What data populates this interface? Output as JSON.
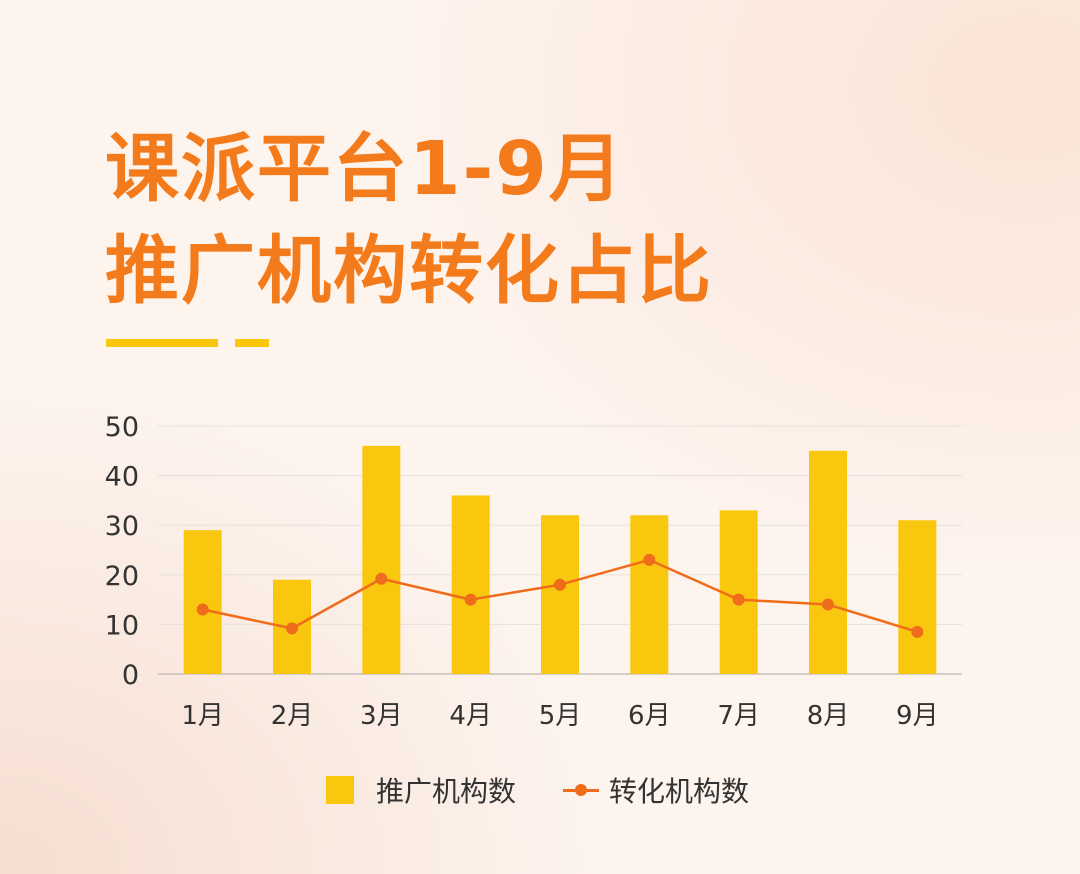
{
  "title": {
    "line1": "课派平台1-9月",
    "line2": "推广机构转化占比"
  },
  "colors": {
    "title": "#f47b1b",
    "bar": "#f9c80e",
    "line": "#ef6c1a"
  },
  "chart_data": {
    "type": "bar",
    "categories": [
      "1月",
      "2月",
      "3月",
      "4月",
      "5月",
      "6月",
      "7月",
      "8月",
      "9月"
    ],
    "series": [
      {
        "name": "推广机构数",
        "type": "bar",
        "values": [
          29,
          19,
          46,
          36,
          32,
          32,
          33,
          45,
          31
        ]
      },
      {
        "name": "转化机构数",
        "type": "line",
        "values": [
          13,
          9.2,
          19.2,
          15,
          18,
          23,
          15,
          14,
          8.5
        ]
      }
    ],
    "ylim": [
      0,
      50
    ],
    "yticks": [
      0,
      10,
      20,
      30,
      40,
      50
    ],
    "grid": true,
    "legend": "bottom"
  }
}
